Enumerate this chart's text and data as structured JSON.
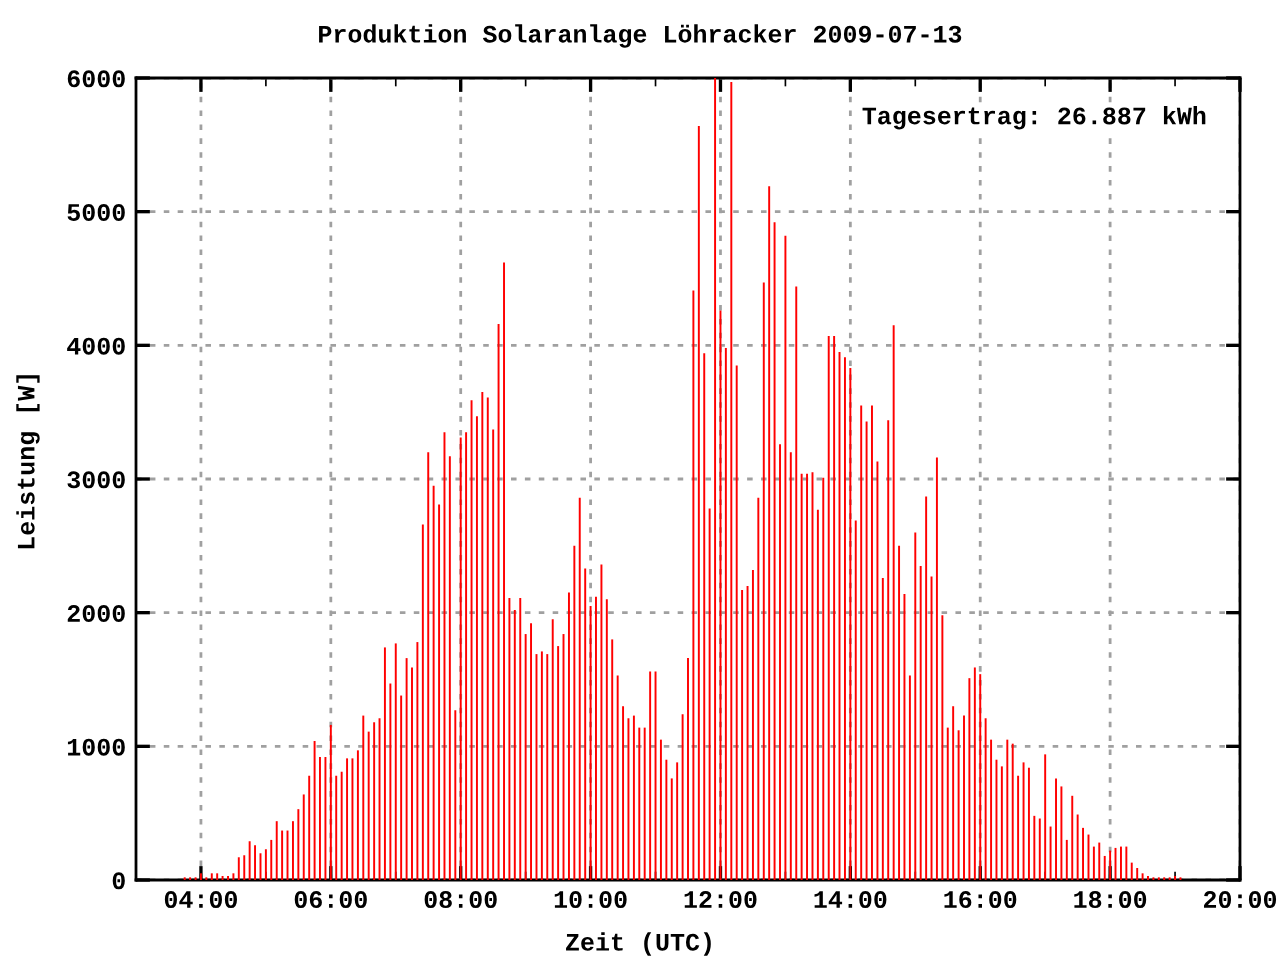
{
  "chart_data": {
    "type": "bar",
    "title": "Produktion Solaranlage Löhracker 2009-07-13",
    "xlabel": "Zeit (UTC)",
    "ylabel": "Leistung [W]",
    "annotations": [
      "Tagesertrag: 26.887 kWh"
    ],
    "x": [
      3.75,
      3.833,
      3.917,
      4,
      4.083,
      4.167,
      4.25,
      4.333,
      4.417,
      4.5,
      4.583,
      4.667,
      4.75,
      4.833,
      4.917,
      5,
      5.083,
      5.167,
      5.25,
      5.333,
      5.417,
      5.5,
      5.583,
      5.667,
      5.75,
      5.833,
      5.917,
      6,
      6.083,
      6.167,
      6.25,
      6.333,
      6.417,
      6.5,
      6.583,
      6.667,
      6.75,
      6.833,
      6.917,
      7,
      7.083,
      7.167,
      7.25,
      7.333,
      7.417,
      7.5,
      7.583,
      7.667,
      7.75,
      7.833,
      7.917,
      8,
      8.083,
      8.167,
      8.25,
      8.333,
      8.417,
      8.5,
      8.583,
      8.667,
      8.75,
      8.833,
      8.917,
      9,
      9.083,
      9.167,
      9.25,
      9.333,
      9.417,
      9.5,
      9.583,
      9.667,
      9.75,
      9.833,
      9.917,
      10,
      10.083,
      10.167,
      10.25,
      10.333,
      10.417,
      10.5,
      10.583,
      10.667,
      10.75,
      10.833,
      10.917,
      11,
      11.083,
      11.167,
      11.25,
      11.333,
      11.417,
      11.5,
      11.583,
      11.667,
      11.75,
      11.833,
      11.917,
      12,
      12.083,
      12.167,
      12.25,
      12.333,
      12.417,
      12.5,
      12.583,
      12.667,
      12.75,
      12.833,
      12.917,
      13,
      13.083,
      13.167,
      13.25,
      13.333,
      13.417,
      13.5,
      13.583,
      13.667,
      13.75,
      13.833,
      13.917,
      14,
      14.083,
      14.167,
      14.25,
      14.333,
      14.417,
      14.5,
      14.583,
      14.667,
      14.75,
      14.833,
      14.917,
      15,
      15.083,
      15.167,
      15.25,
      15.333,
      15.417,
      15.5,
      15.583,
      15.667,
      15.75,
      15.833,
      15.917,
      16,
      16.083,
      16.167,
      16.25,
      16.333,
      16.417,
      16.5,
      16.583,
      16.667,
      16.75,
      16.833,
      16.917,
      17,
      17.083,
      17.167,
      17.25,
      17.333,
      17.417,
      17.5,
      17.583,
      17.667,
      17.75,
      17.833,
      17.917,
      18,
      18.083,
      18.167,
      18.25,
      18.333,
      18.417,
      18.5,
      18.583,
      18.667,
      18.75,
      18.833,
      18.917,
      19,
      19.083
    ],
    "values": [
      20,
      20,
      20,
      50,
      20,
      50,
      50,
      30,
      30,
      50,
      170,
      185,
      290,
      260,
      200,
      230,
      300,
      440,
      370,
      370,
      440,
      530,
      640,
      780,
      1040,
      920,
      920,
      1160,
      780,
      810,
      910,
      910,
      970,
      1230,
      1110,
      1180,
      1210,
      1740,
      1470,
      1770,
      1380,
      1660,
      1590,
      1780,
      2660,
      3200,
      2950,
      2810,
      3350,
      3170,
      1270,
      3310,
      3350,
      3590,
      3470,
      3650,
      3610,
      3370,
      4160,
      4620,
      2110,
      2020,
      2110,
      1840,
      1920,
      1690,
      1710,
      1690,
      1950,
      1750,
      1840,
      2150,
      2500,
      2860,
      2330,
      2050,
      2120,
      2360,
      2100,
      1800,
      1530,
      1300,
      1210,
      1230,
      1140,
      1140,
      1560,
      1560,
      1050,
      900,
      760,
      880,
      1240,
      1660,
      4410,
      5640,
      3940,
      2780,
      6000,
      4260,
      3980,
      5970,
      3850,
      2170,
      2200,
      2320,
      2860,
      4470,
      5190,
      4920,
      3260,
      4820,
      3200,
      4440,
      3040,
      3040,
      3050,
      2770,
      3010,
      4070,
      4070,
      3950,
      3910,
      3830,
      2690,
      3550,
      3430,
      3550,
      3130,
      2260,
      3440,
      4150,
      2500,
      2140,
      1530,
      2600,
      2350,
      2870,
      2270,
      3160,
      1980,
      1140,
      1300,
      1120,
      1230,
      1510,
      1590,
      1540,
      1210,
      1050,
      900,
      850,
      1050,
      1020,
      780,
      880,
      840,
      480,
      460,
      940,
      400,
      760,
      700,
      300,
      630,
      490,
      390,
      340,
      250,
      280,
      180,
      220,
      240,
      250,
      250,
      130,
      90,
      50,
      30,
      20,
      20,
      20,
      20,
      30,
      20
    ],
    "color": "#ff0000",
    "xlim": [
      3,
      20
    ],
    "ylim": [
      0,
      6000
    ],
    "xticks": [
      {
        "value": 4,
        "label": "04:00"
      },
      {
        "value": 5,
        "label": null
      },
      {
        "value": 6,
        "label": "06:00"
      },
      {
        "value": 7,
        "label": null
      },
      {
        "value": 8,
        "label": "08:00"
      },
      {
        "value": 9,
        "label": null
      },
      {
        "value": 10,
        "label": "10:00"
      },
      {
        "value": 11,
        "label": null
      },
      {
        "value": 12,
        "label": "12:00"
      },
      {
        "value": 13,
        "label": null
      },
      {
        "value": 14,
        "label": "14:00"
      },
      {
        "value": 15,
        "label": null
      },
      {
        "value": 16,
        "label": "16:00"
      },
      {
        "value": 17,
        "label": null
      },
      {
        "value": 18,
        "label": "18:00"
      },
      {
        "value": 19,
        "label": null
      },
      {
        "value": 20,
        "label": "20:00"
      }
    ],
    "yticks": [
      0,
      1000,
      2000,
      3000,
      4000,
      5000,
      6000
    ],
    "grid": true,
    "legend": false
  }
}
